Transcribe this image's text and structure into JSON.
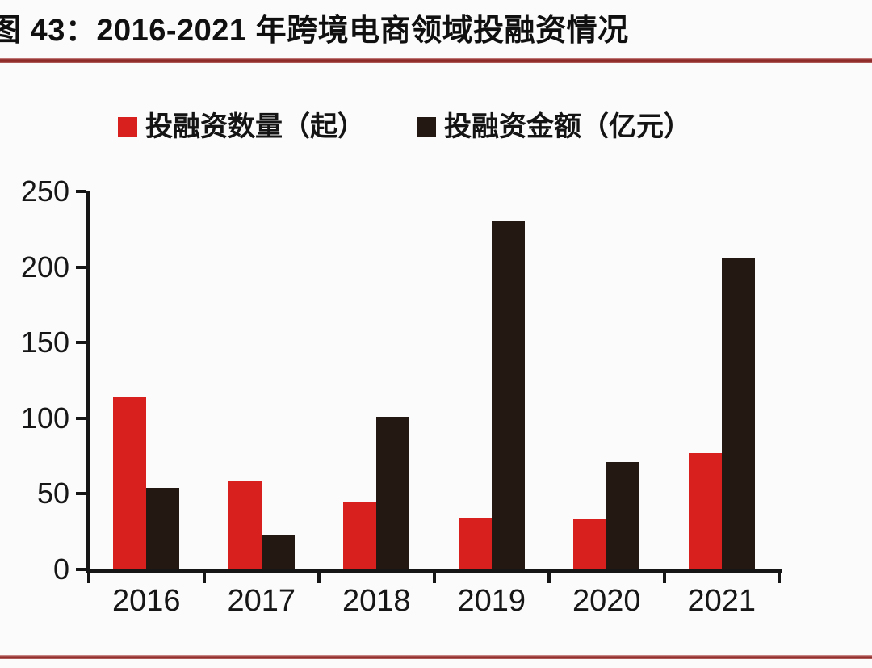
{
  "header": {
    "title": "图 43：2016-2021 年跨境电商领域投融资情况"
  },
  "legend": {
    "items": [
      {
        "key": "count",
        "label": "投融资数量（起）",
        "color": "#d8211f"
      },
      {
        "key": "amount",
        "label": "投融资金额（亿元）",
        "color": "#241813"
      }
    ]
  },
  "chart_data": {
    "type": "bar",
    "title": "2016-2021 年跨境电商领域投融资情况",
    "categories": [
      "2016",
      "2017",
      "2018",
      "2019",
      "2020",
      "2021"
    ],
    "series": [
      {
        "key": "count",
        "name": "投融资数量（起）",
        "color": "#d8211f",
        "values": [
          114,
          58,
          45,
          34,
          33,
          77
        ]
      },
      {
        "key": "amount",
        "name": "投融资金额（亿元）",
        "color": "#241813",
        "values": [
          54,
          23,
          101,
          230,
          71,
          206
        ]
      }
    ],
    "xlabel": "",
    "ylabel": "",
    "ylim": [
      0,
      250
    ],
    "yticks": [
      0,
      50,
      100,
      150,
      200,
      250
    ],
    "grid": false,
    "legend_position": "top"
  },
  "colors": {
    "series_count_red": "#d8211f",
    "series_amount_black": "#241813",
    "divider_red": "#93302d",
    "axis_text": "#161616",
    "background": "#fbfbfc"
  }
}
